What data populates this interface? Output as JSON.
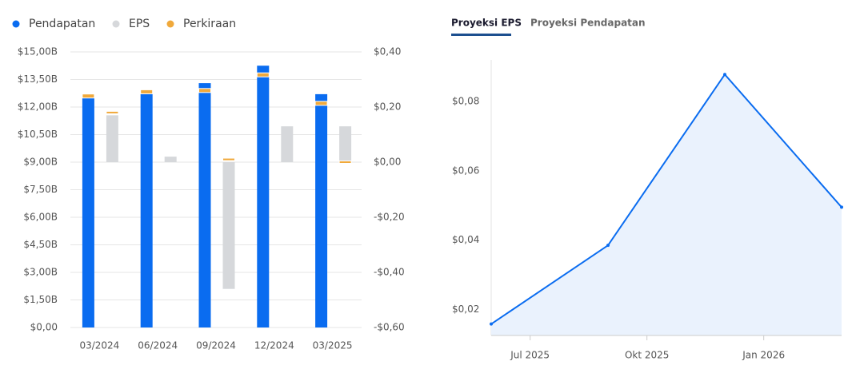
{
  "chart_data": [
    {
      "type": "bar",
      "categories": [
        "03/2024",
        "06/2024",
        "09/2024",
        "12/2024",
        "03/2025"
      ],
      "series": [
        {
          "name": "Pendapatan",
          "color": "#0a6cf0",
          "values": [
            12.5,
            12.7,
            13.3,
            14.25,
            12.7
          ]
        },
        {
          "name": "EPS",
          "color": "#d6d8db",
          "axis": "y2",
          "values": [
            0.17,
            0.02,
            -0.46,
            0.13,
            0.13
          ]
        },
        {
          "name": "Perkiraan",
          "color": "#f0a93b",
          "values": [
            12.6,
            12.83,
            12.9,
            13.75,
            12.2
          ],
          "eps_values": [
            0.18,
            null,
            0.01,
            null,
            0.0
          ]
        }
      ],
      "ylim": [
        0,
        15
      ],
      "yticks": [
        {
          "value": 0,
          "label": "$0,00"
        },
        {
          "value": 1.5,
          "label": "$1,50B"
        },
        {
          "value": 3,
          "label": "$3,00B"
        },
        {
          "value": 4.5,
          "label": "$4,50B"
        },
        {
          "value": 6,
          "label": "$6,00B"
        },
        {
          "value": 7.5,
          "label": "$7,50B"
        },
        {
          "value": 9,
          "label": "$9,00B"
        },
        {
          "value": 10.5,
          "label": "$10,50B"
        },
        {
          "value": 12,
          "label": "$12,00B"
        },
        {
          "value": 13.5,
          "label": "$13,50B"
        },
        {
          "value": 15,
          "label": "$15,00B"
        }
      ],
      "y2lim": [
        -0.6,
        0.4
      ],
      "y2ticks": [
        {
          "value": -0.6,
          "label": "-$0,60"
        },
        {
          "value": -0.4,
          "label": "-$0,40"
        },
        {
          "value": -0.2,
          "label": "-$0,20"
        },
        {
          "value": 0,
          "label": "$0,00"
        },
        {
          "value": 0.2,
          "label": "$0,20"
        },
        {
          "value": 0.4,
          "label": "$0,40"
        }
      ],
      "grid": true
    },
    {
      "type": "area",
      "tabs": [
        "Proyeksi EPS",
        "Proyeksi Pendapatan"
      ],
      "x": [
        "2025-06",
        "2025-09",
        "2025-12",
        "2026-03"
      ],
      "series": [
        {
          "name": "Proyeksi EPS",
          "color": "#0a6cf0",
          "fill": "#eaf2fd",
          "values": [
            0.0158,
            0.0385,
            0.0878,
            0.0495
          ]
        }
      ],
      "xlim": [
        "2025-06",
        "2026-03"
      ],
      "xticks": [
        {
          "value": "2025-07",
          "label": "Jul 2025"
        },
        {
          "value": "2025-10",
          "label": "Okt 2025"
        },
        {
          "value": "2026-01",
          "label": "Jan 2026"
        }
      ],
      "ylim": [
        0.0125,
        0.092
      ],
      "yticks": [
        {
          "value": 0.02,
          "label": "$0,02"
        },
        {
          "value": 0.04,
          "label": "$0,04"
        },
        {
          "value": 0.06,
          "label": "$0,06"
        },
        {
          "value": 0.08,
          "label": "$0,08"
        }
      ]
    }
  ]
}
